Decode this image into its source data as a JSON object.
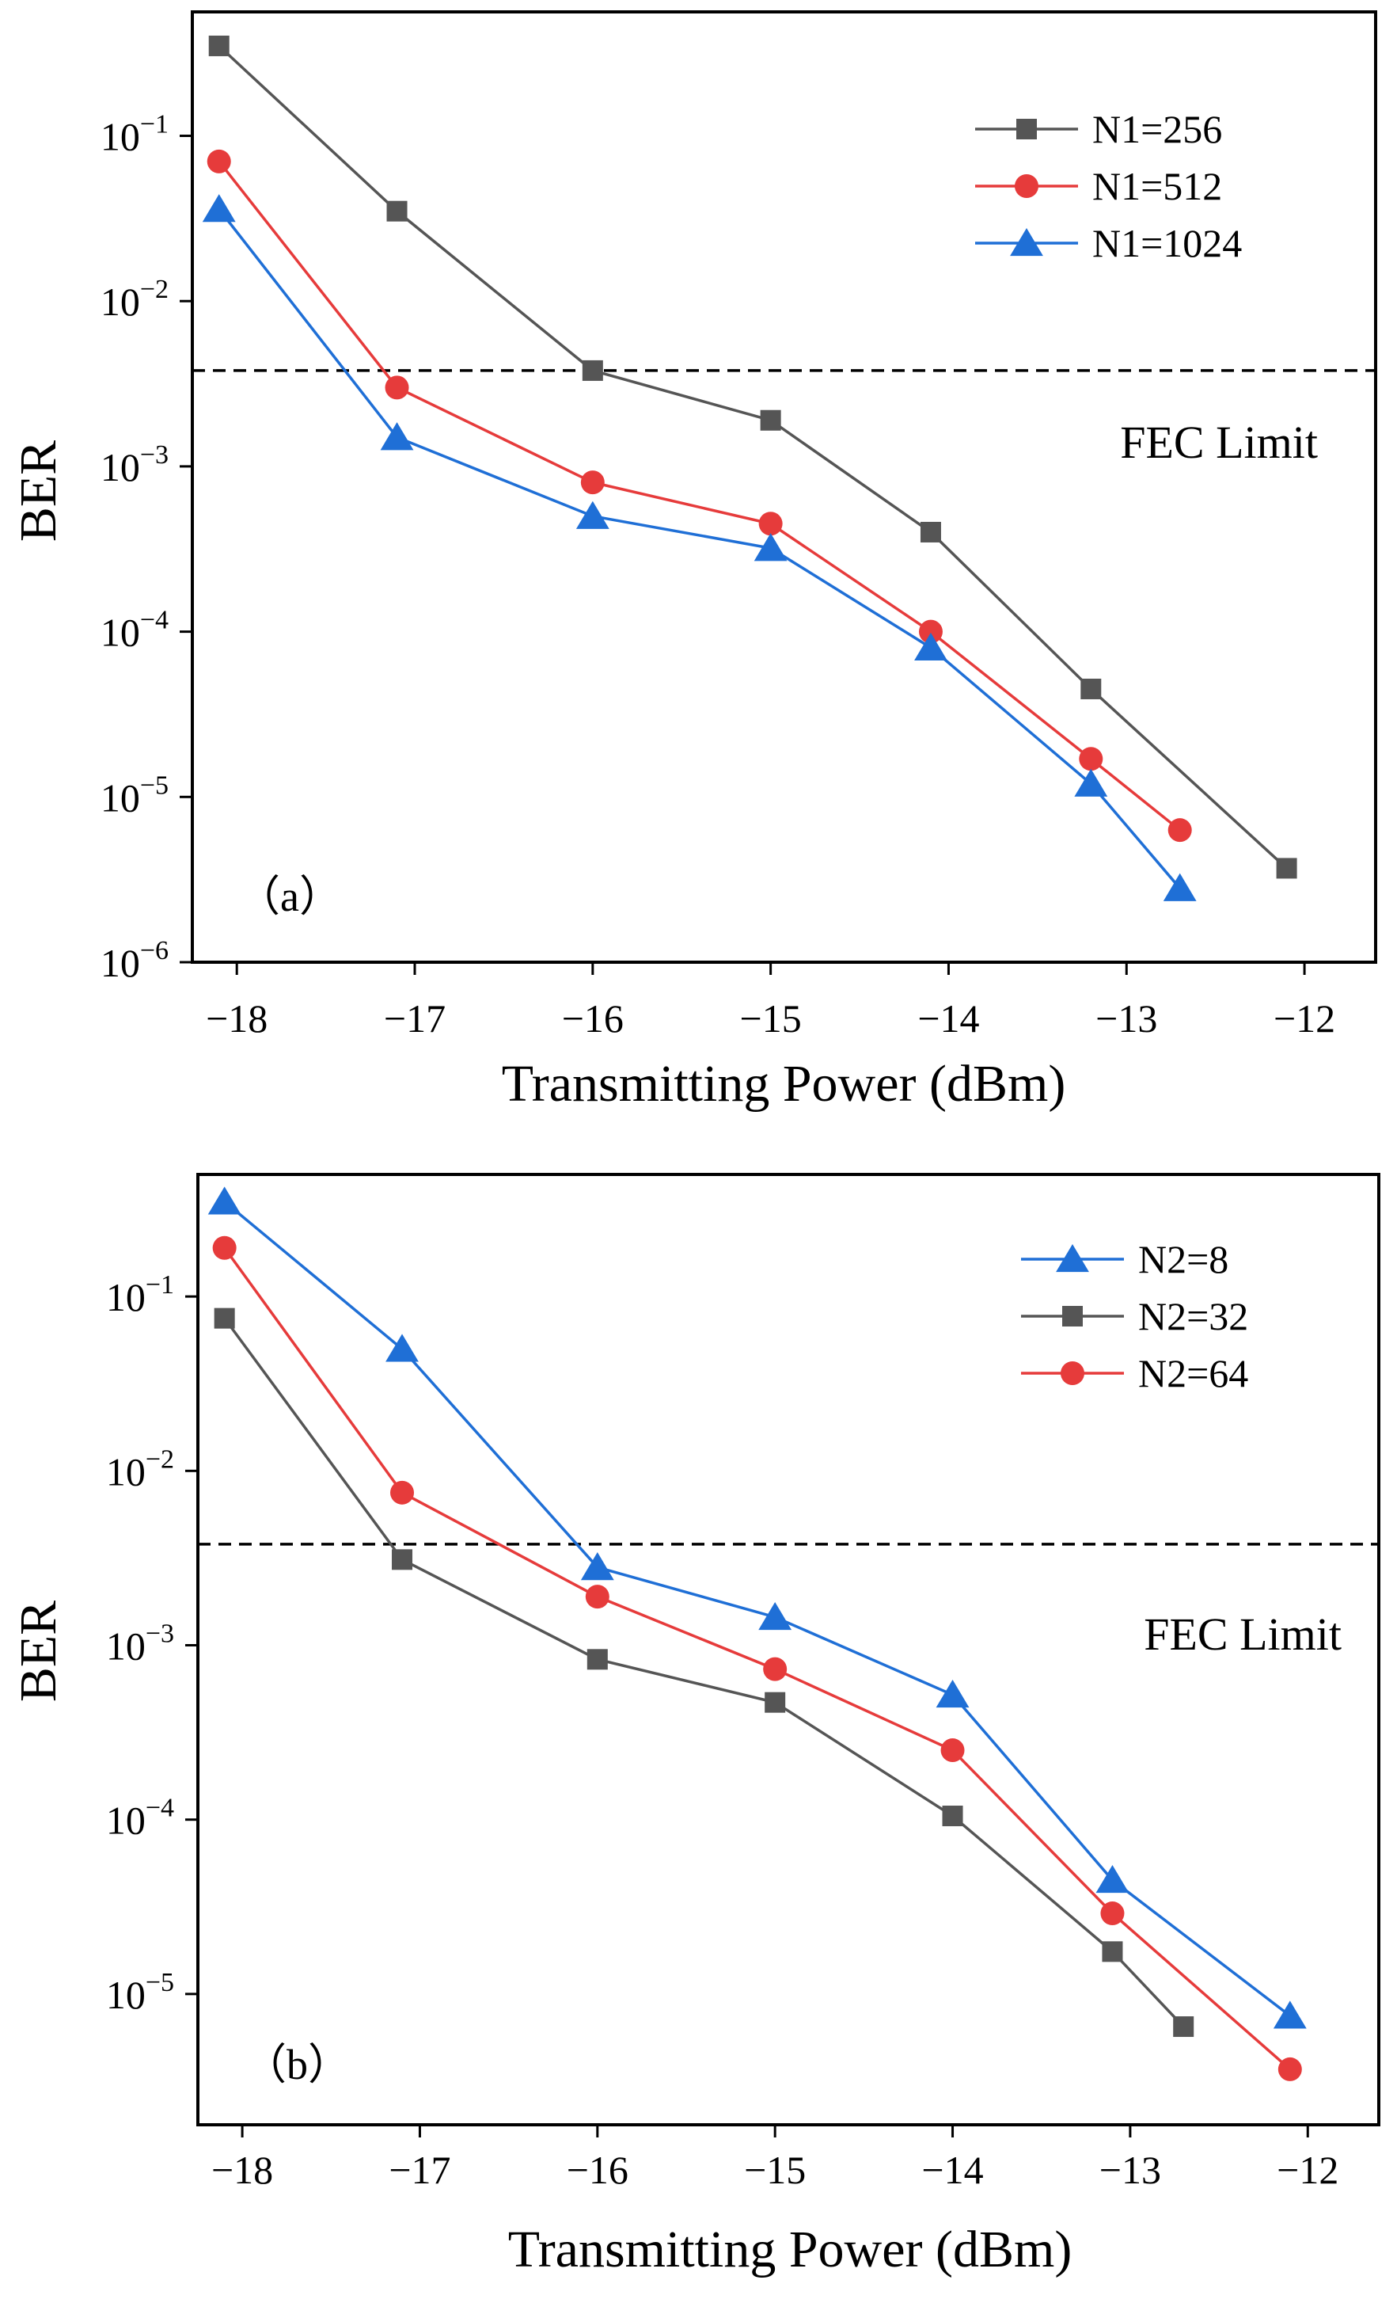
{
  "colors": {
    "dark": "#555555",
    "red": "#e63b3b",
    "blue": "#1f6fd6",
    "axis": "#000000"
  },
  "chart_data": [
    {
      "type": "line",
      "panel_label": "（a）",
      "xlabel": "Transmitting Power (dBm)",
      "ylabel": "BER",
      "yscale": "log",
      "xlim": [
        -18.25,
        -11.6
      ],
      "ylim_log10": [
        -6.0,
        -0.25
      ],
      "x_ticks": [
        -18,
        -17,
        -16,
        -15,
        -14,
        -13,
        -12
      ],
      "x_tick_labels": [
        "−18",
        "−17",
        "−16",
        "−15",
        "−14",
        "−13",
        "−12"
      ],
      "y_ticks_log10": [
        -1,
        -2,
        -3,
        -4,
        -5,
        -6
      ],
      "y_tick_labels": [
        {
          "base": "10",
          "exp": "−1"
        },
        {
          "base": "10",
          "exp": "−2"
        },
        {
          "base": "10",
          "exp": "−3"
        },
        {
          "base": "10",
          "exp": "−4"
        },
        {
          "base": "10",
          "exp": "−5"
        },
        {
          "base": "10",
          "exp": "−6"
        }
      ],
      "fec_limit": {
        "label": "FEC Limit",
        "value": 0.0038
      },
      "legend_position": "top-right",
      "series": [
        {
          "name": "N1=256",
          "color": "#555555",
          "marker": "square",
          "x": [
            -18.1,
            -17.1,
            -16.0,
            -15.0,
            -14.1,
            -13.2,
            -12.1
          ],
          "y": [
            0.35,
            0.035,
            0.0038,
            0.0019,
            0.0004,
            4.5e-05,
            3.7e-06
          ]
        },
        {
          "name": "N1=512",
          "color": "#e63b3b",
          "marker": "circle",
          "x": [
            -18.1,
            -17.1,
            -16.0,
            -15.0,
            -14.1,
            -13.2,
            -12.7
          ],
          "y": [
            0.07,
            0.003,
            0.0008,
            0.00045,
            0.0001,
            1.7e-05,
            6.3e-06
          ]
        },
        {
          "name": "N1=1024",
          "color": "#1f6fd6",
          "marker": "triangle",
          "x": [
            -18.1,
            -17.1,
            -16.0,
            -15.0,
            -14.1,
            -13.2,
            -12.7
          ],
          "y": [
            0.036,
            0.0015,
            0.0005,
            0.00032,
            8e-05,
            1.2e-05,
            2.8e-06
          ]
        }
      ]
    },
    {
      "type": "line",
      "panel_label": "（b）",
      "xlabel": "Transmitting Power (dBm)",
      "ylabel": "BER",
      "yscale": "log",
      "xlim": [
        -18.25,
        -11.6
      ],
      "ylim_log10": [
        -5.75,
        -0.3
      ],
      "x_ticks": [
        -18,
        -17,
        -16,
        -15,
        -14,
        -13,
        -12
      ],
      "x_tick_labels": [
        "−18",
        "−17",
        "−16",
        "−15",
        "−14",
        "−13",
        "−12"
      ],
      "y_ticks_log10": [
        -1,
        -2,
        -3,
        -4,
        -5
      ],
      "y_tick_labels": [
        {
          "base": "10",
          "exp": "−1"
        },
        {
          "base": "10",
          "exp": "−2"
        },
        {
          "base": "10",
          "exp": "−3"
        },
        {
          "base": "10",
          "exp": "−4"
        },
        {
          "base": "10",
          "exp": "−5"
        }
      ],
      "fec_limit": {
        "label": "FEC Limit",
        "value": 0.0038
      },
      "legend_position": "top-right",
      "series": [
        {
          "name": "N2=8",
          "color": "#1f6fd6",
          "marker": "triangle",
          "x": [
            -18.1,
            -17.1,
            -16.0,
            -15.0,
            -14.0,
            -13.1,
            -12.1
          ],
          "y": [
            0.35,
            0.05,
            0.0028,
            0.00145,
            0.00052,
            4.5e-05,
            7.5e-06
          ]
        },
        {
          "name": "N2=32",
          "color": "#555555",
          "marker": "square",
          "x": [
            -18.1,
            -17.1,
            -16.0,
            -15.0,
            -14.0,
            -13.1,
            -12.7
          ],
          "y": [
            0.075,
            0.0031,
            0.00083,
            0.00047,
            0.000105,
            1.75e-05,
            6.5e-06
          ]
        },
        {
          "name": "N2=64",
          "color": "#e63b3b",
          "marker": "circle",
          "x": [
            -18.1,
            -17.1,
            -16.0,
            -15.0,
            -14.0,
            -13.1,
            -12.1
          ],
          "y": [
            0.19,
            0.0075,
            0.0019,
            0.00073,
            0.00025,
            2.9e-05,
            3.7e-06
          ]
        }
      ]
    }
  ]
}
